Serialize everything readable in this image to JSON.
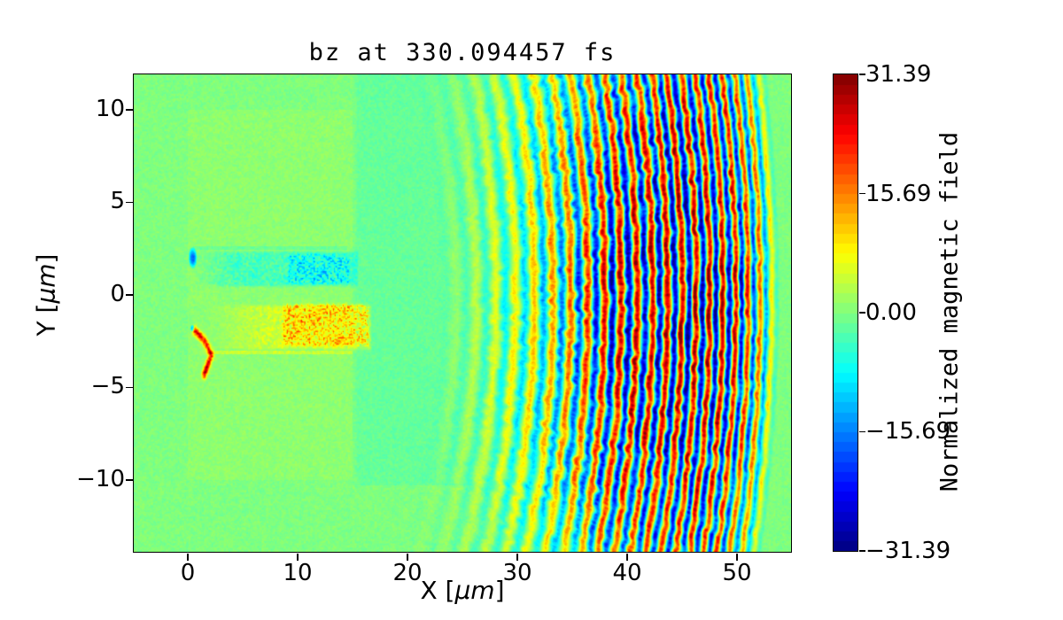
{
  "chart_data": {
    "type": "heatmap",
    "title": "bz at 330.094457 fs",
    "xlabel": "X [μm]",
    "ylabel": "Y [μm]",
    "xlabel_parts": {
      "prefix": "X [",
      "mu": "μm",
      "suffix": "]"
    },
    "ylabel_parts": {
      "prefix": "Y [",
      "mu": "μm",
      "suffix": "]"
    },
    "xlim": [
      -4.92,
      54.92
    ],
    "ylim": [
      -13.88,
      11.91
    ],
    "xticks": [
      0,
      10,
      20,
      30,
      40,
      50
    ],
    "xtick_labels": [
      "0",
      "10",
      "20",
      "30",
      "40",
      "50"
    ],
    "yticks": [
      10,
      5,
      0,
      -5,
      -10
    ],
    "ytick_labels": [
      "10",
      "5",
      "0",
      "−5",
      "−10"
    ],
    "colormap": "jet",
    "grid": false,
    "colorbar": {
      "label": "Normalized magnetic field",
      "vmin": -31.39,
      "vmax": 31.39,
      "ticks": [
        31.39,
        15.69,
        0.0,
        -15.69,
        -31.39
      ],
      "tick_labels": [
        "31.39",
        "15.69",
        "0.00",
        "−15.69",
        "−31.39"
      ],
      "levels": 48
    },
    "field": {
      "description": "bz magnetic field of laser-plasma simulation: plasma target block 0<x<15 um, expanding circular laser wavefronts for r~30-61 um about center (-7,0), cyan/blue channel filament near y=+1.4, orange return-current blob near y=-1.6, red streak near (1.4,-3)",
      "background_noise": 0.05,
      "block": {
        "x": [
          0,
          15
        ],
        "y": [
          -10,
          10
        ],
        "dv": 0.028
      },
      "teal_strip": {
        "x0": 15,
        "x_plateau": 21.5,
        "x_end": 27,
        "y_min": -10.3,
        "dv": -0.05
      },
      "rings": {
        "center": [
          -7,
          0
        ],
        "r_in": 29.5,
        "r_out": 61,
        "lambda_a": 1.6,
        "lambda_b": 0.03,
        "lambda_r0": 42,
        "envelope": [
          [
            29.5,
            0
          ],
          [
            33,
            0.12
          ],
          [
            37,
            0.3
          ],
          [
            41,
            0.55
          ],
          [
            46,
            0.9
          ],
          [
            53,
            1.0
          ],
          [
            57,
            0.9
          ],
          [
            59.5,
            0.5
          ],
          [
            61,
            0
          ]
        ],
        "theta_width": 0.45,
        "theta_floor": 0.45
      },
      "cyan_band": {
        "x": [
          0.3,
          15.6
        ],
        "y": [
          0.35,
          2.45
        ],
        "ramp": 4,
        "base": 0.06,
        "speckle": 0.16
      },
      "cyan_blob": {
        "x": [
          9.0,
          14.9
        ],
        "y": [
          0.45,
          2.35
        ],
        "speckle": 0.38
      },
      "cyan_line": {
        "x": [
          0.5,
          14.5
        ],
        "y": [
          2.45,
          2.62
        ],
        "dv": 0.07
      },
      "blue_dot": {
        "c": [
          0.45,
          2.0
        ],
        "rx": 0.42,
        "ry": 0.62,
        "dv": 0.58
      },
      "orange_band": {
        "x": [
          2.2,
          16.8
        ],
        "y": [
          -3.05,
          -0.45
        ],
        "ramp": 5,
        "base": 0.05,
        "speckle": 0.16
      },
      "orange_blob": {
        "x": [
          8.5,
          16.6
        ],
        "y": [
          -2.9,
          -0.35
        ],
        "speckle": 0.5
      },
      "orange_line": {
        "x": [
          2.0,
          15.0
        ],
        "y": [
          -3.22,
          -3.02
        ],
        "dv": 0.16
      },
      "red_streak": {
        "pts": [
          [
            0.65,
            -1.95
          ],
          [
            1.5,
            -2.45
          ],
          [
            2.15,
            -3.25
          ],
          [
            1.5,
            -4.3
          ]
        ],
        "sigma": 0.15,
        "dv": 0.85
      },
      "dark_dot": {
        "c": [
          0.42,
          -1.8
        ],
        "r": 0.2,
        "dv": 0.5
      }
    }
  }
}
